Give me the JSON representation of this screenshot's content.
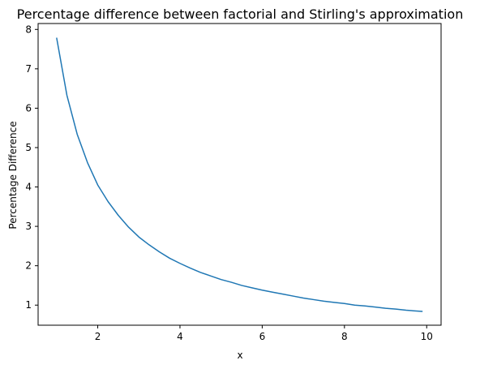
{
  "chart_data": {
    "type": "line",
    "title": "Percentage difference between factorial and Stirling's approximation",
    "xlabel": "x",
    "ylabel": "Percentage Difference",
    "xlim": [
      0.55,
      10.35
    ],
    "ylim": [
      0.49,
      8.15
    ],
    "xticks": [
      2,
      4,
      6,
      8,
      10
    ],
    "yticks": [
      1,
      2,
      3,
      4,
      5,
      6,
      7,
      8
    ],
    "grid": false,
    "series": [
      {
        "color": "#1f77b4",
        "x": [
          1,
          1.25,
          1.5,
          1.75,
          2,
          2.25,
          2.5,
          2.75,
          3,
          3.25,
          3.5,
          3.75,
          4,
          4.25,
          4.5,
          4.75,
          5,
          5.25,
          5.5,
          5.75,
          6,
          6.25,
          6.5,
          6.75,
          7,
          7.25,
          7.5,
          7.75,
          8,
          8.25,
          8.5,
          8.75,
          9,
          9.25,
          9.5,
          9.75,
          9.9
        ],
        "y": [
          7.79,
          6.33,
          5.34,
          4.62,
          4.05,
          3.63,
          3.28,
          2.98,
          2.73,
          2.53,
          2.35,
          2.19,
          2.06,
          1.94,
          1.83,
          1.74,
          1.65,
          1.58,
          1.5,
          1.44,
          1.38,
          1.33,
          1.28,
          1.23,
          1.18,
          1.14,
          1.1,
          1.07,
          1.04,
          1.0,
          0.98,
          0.95,
          0.92,
          0.9,
          0.87,
          0.85,
          0.84
        ]
      }
    ]
  }
}
